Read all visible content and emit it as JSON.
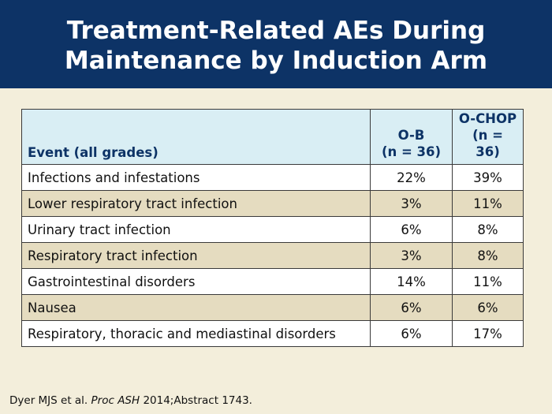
{
  "slide": {
    "title_line1": "Treatment-Related AEs During",
    "title_line2": "Maintenance by Induction Arm"
  },
  "table": {
    "headers": {
      "event": "Event (all grades)",
      "ob_line1": "O-B",
      "ob_line2": "(n = 36)",
      "ochop_line1": "O-CHOP",
      "ochop_line2": "(n = 36)"
    },
    "rows": [
      {
        "event": "Infections and infestations",
        "ob": "22%",
        "ochop": "39%",
        "indent": false
      },
      {
        "event": "Lower respiratory tract infection",
        "ob": "3%",
        "ochop": "11%",
        "indent": true
      },
      {
        "event": "Urinary tract infection",
        "ob": "6%",
        "ochop": "8%",
        "indent": true
      },
      {
        "event": "Respiratory tract infection",
        "ob": "3%",
        "ochop": "8%",
        "indent": true
      },
      {
        "event": "Gastrointestinal disorders",
        "ob": "14%",
        "ochop": "11%",
        "indent": false
      },
      {
        "event": "Nausea",
        "ob": "6%",
        "ochop": "6%",
        "indent": true
      },
      {
        "event": "Respiratory, thoracic and mediastinal disorders",
        "ob": "6%",
        "ochop": "17%",
        "indent": false
      }
    ]
  },
  "citation": {
    "authors": "Dyer MJS et al. ",
    "journal": "Proc ASH",
    "detail": " 2014;Abstract 1743."
  },
  "colors": {
    "title_bar": "#0d3366",
    "background": "#f3eedb",
    "header_fill": "#d9eef4",
    "row_white": "#ffffff",
    "row_tan": "#e5dcc0"
  }
}
